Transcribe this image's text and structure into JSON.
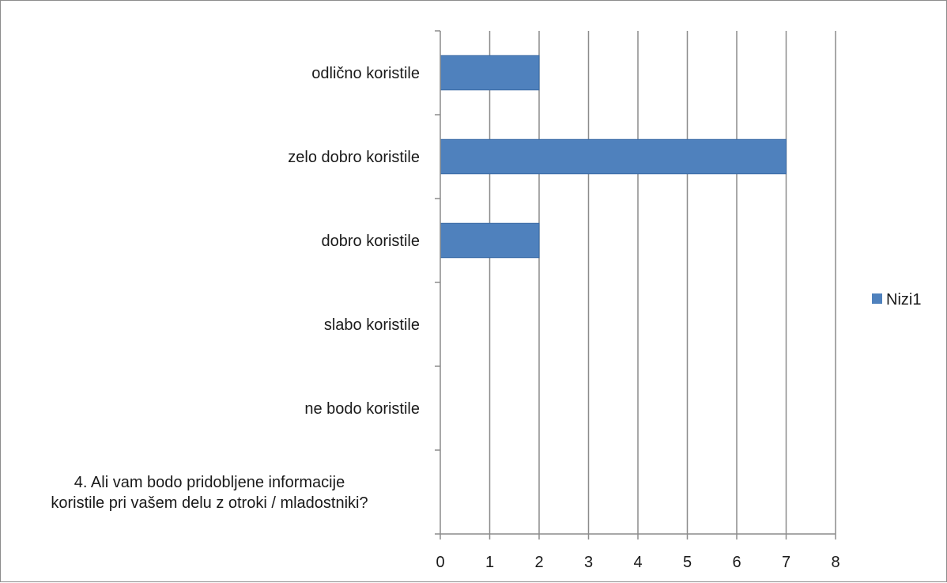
{
  "chart_data": {
    "type": "bar",
    "orientation": "horizontal",
    "categories": [
      "odlično koristile",
      "zelo dobro koristile",
      "dobro koristile",
      "slabo koristile",
      "ne bodo koristile",
      "4. Ali vam bodo pridobljene informacije koristile pri vašem delu z otroki / mladostniki?"
    ],
    "category_lines": [
      [
        "odlično koristile"
      ],
      [
        "zelo dobro koristile"
      ],
      [
        "dobro koristile"
      ],
      [
        "slabo koristile"
      ],
      [
        "ne bodo koristile"
      ],
      [
        "4. Ali vam bodo pridobljene informacije",
        "koristile pri vašem delu z otroki / mladostniki?"
      ]
    ],
    "series": [
      {
        "name": "Nizi1",
        "values": [
          2,
          7,
          2,
          0,
          0,
          0
        ],
        "color": "#4f81bd"
      }
    ],
    "xlim": [
      0,
      8
    ],
    "x_ticks": [
      "0",
      "1",
      "2",
      "3",
      "4",
      "5",
      "6",
      "7",
      "8"
    ],
    "grid": "vertical",
    "legend": {
      "position": "right",
      "entries": [
        "Nizi1"
      ]
    },
    "title": "",
    "xlabel": "",
    "ylabel": ""
  }
}
